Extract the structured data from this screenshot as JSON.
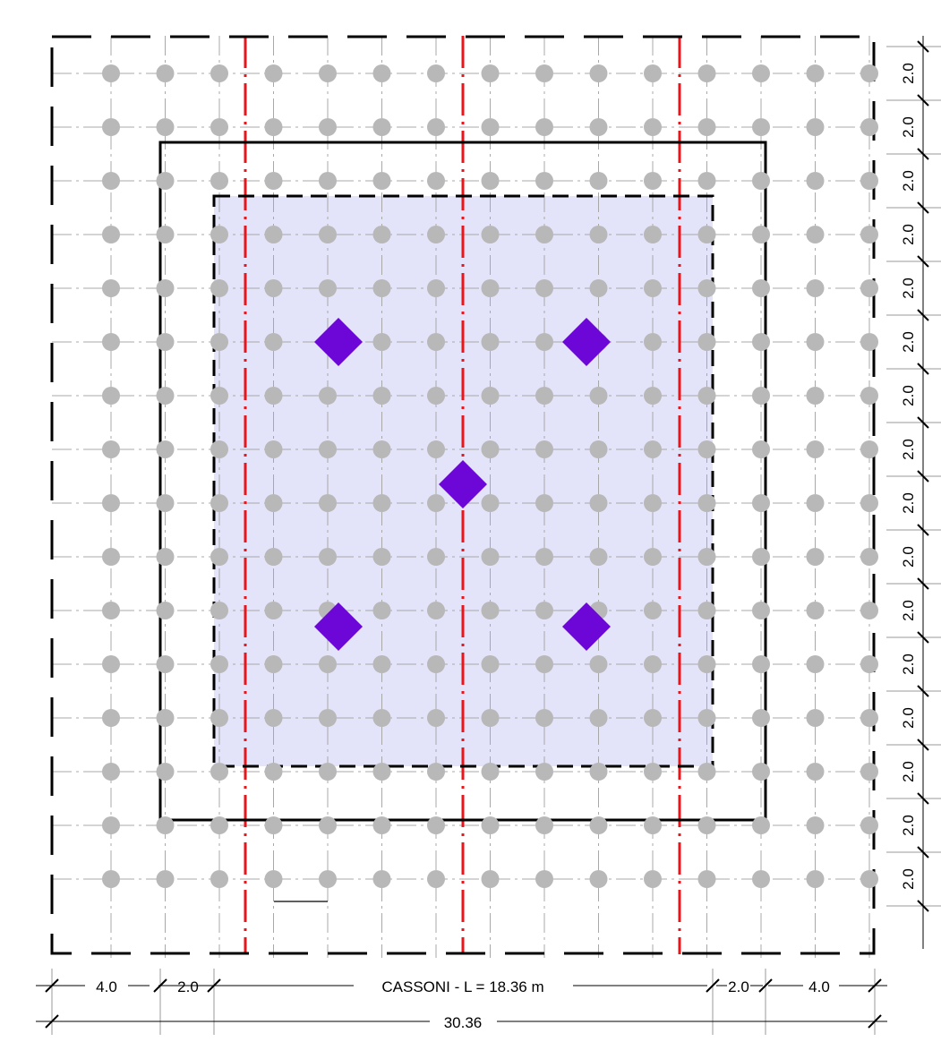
{
  "colors": {
    "grid_line": "#a8a8a8",
    "grid_node": "#b8b8b8",
    "axis_red": "#e8151b",
    "outline": "#000000",
    "shaded_area": "#e3e3fa",
    "diamond": "#6d07d8",
    "dim_line": "#9a9a9a"
  },
  "grid": {
    "columns": 15,
    "rows": 16
  },
  "labels": {
    "right_dims": [
      "2.0",
      "2.0",
      "2.0",
      "2.0",
      "2.0",
      "2.0",
      "2.0",
      "2.0",
      "2.0",
      "2.0",
      "2.0",
      "2.0",
      "2.0",
      "2.0",
      "2.0",
      "2.0"
    ],
    "bottom_dims": [
      "4.0",
      "2.0",
      "CASSONI - L = 18.36 m",
      "2.0",
      "4.0"
    ],
    "total": "30.36"
  }
}
